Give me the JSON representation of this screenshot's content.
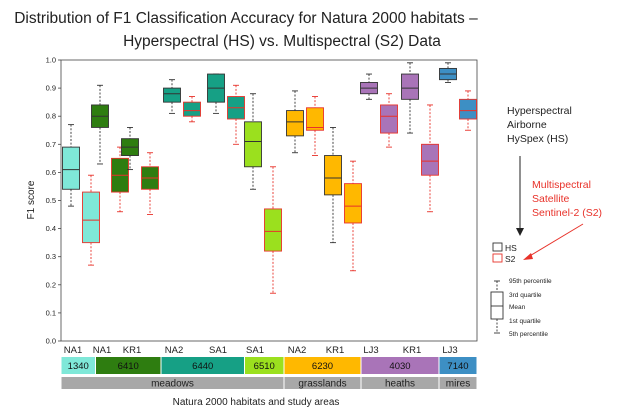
{
  "chart_data": {
    "type": "boxplot",
    "title_line1": "Distribution of F1 Classification Accuracy for Natura 2000 habitats –",
    "title_line2": "Hyperspectral (HS) vs. Multispectral (S2) Data",
    "ylabel": "F1 score",
    "xlabel": "Natura 2000  habitats and study areas",
    "ylim": [
      0,
      1
    ],
    "yticks": [
      "0.0",
      "0.1",
      "0.2",
      "0.3",
      "0.4",
      "0.5",
      "0.6",
      "0.7",
      "0.8",
      "0.9",
      "1.0"
    ],
    "groups": [
      {
        "label": "NA1",
        "habitat": "1340",
        "hs": {
          "p5": 0.48,
          "q1": 0.54,
          "mean": 0.61,
          "q3": 0.69,
          "p95": 0.77
        },
        "s2": {
          "p5": 0.27,
          "q1": 0.35,
          "mean": 0.43,
          "q3": 0.53,
          "p95": 0.59
        }
      },
      {
        "label": "NA1",
        "habitat": "6410",
        "hs": {
          "p5": 0.63,
          "q1": 0.76,
          "mean": 0.8,
          "q3": 0.84,
          "p95": 0.91
        },
        "s2": {
          "p5": 0.46,
          "q1": 0.53,
          "mean": 0.59,
          "q3": 0.65,
          "p95": 0.69
        }
      },
      {
        "label": "KR1",
        "habitat": "6410",
        "hs": {
          "p5": 0.61,
          "q1": 0.66,
          "mean": 0.69,
          "q3": 0.72,
          "p95": 0.76
        },
        "s2": {
          "p5": 0.45,
          "q1": 0.54,
          "mean": 0.58,
          "q3": 0.62,
          "p95": 0.67
        }
      },
      {
        "label": "NA2",
        "habitat": "6440",
        "hs": {
          "p5": 0.81,
          "q1": 0.85,
          "mean": 0.88,
          "q3": 0.9,
          "p95": 0.93
        },
        "s2": {
          "p5": 0.78,
          "q1": 0.8,
          "mean": 0.82,
          "q3": 0.85,
          "p95": 0.87
        }
      },
      {
        "label": "SA1",
        "habitat": "6440",
        "hs": {
          "p5": 0.81,
          "q1": 0.85,
          "mean": 0.9,
          "q3": 0.95,
          "p95": 0.95
        },
        "s2": {
          "p5": 0.7,
          "q1": 0.79,
          "mean": 0.83,
          "q3": 0.87,
          "p95": 0.91
        }
      },
      {
        "label": "SA1",
        "habitat": "6510",
        "hs": {
          "p5": 0.54,
          "q1": 0.62,
          "mean": 0.71,
          "q3": 0.78,
          "p95": 0.88
        },
        "s2": {
          "p5": 0.17,
          "q1": 0.32,
          "mean": 0.39,
          "q3": 0.47,
          "p95": 0.62
        }
      },
      {
        "label": "NA2",
        "habitat": "6230",
        "hs": {
          "p5": 0.67,
          "q1": 0.73,
          "mean": 0.78,
          "q3": 0.82,
          "p95": 0.89
        },
        "s2": {
          "p5": 0.66,
          "q1": 0.75,
          "mean": 0.76,
          "q3": 0.83,
          "p95": 0.87
        }
      },
      {
        "label": "KR1",
        "habitat": "6230",
        "hs": {
          "p5": 0.35,
          "q1": 0.52,
          "mean": 0.58,
          "q3": 0.66,
          "p95": 0.76
        },
        "s2": {
          "p5": 0.25,
          "q1": 0.42,
          "mean": 0.48,
          "q3": 0.56,
          "p95": 0.64
        }
      },
      {
        "label": "LJ3",
        "habitat": "4030",
        "hs": {
          "p5": 0.86,
          "q1": 0.88,
          "mean": 0.9,
          "q3": 0.92,
          "p95": 0.95
        },
        "s2": {
          "p5": 0.69,
          "q1": 0.74,
          "mean": 0.8,
          "q3": 0.84,
          "p95": 0.88
        }
      },
      {
        "label": "KR1",
        "habitat": "4030",
        "hs": {
          "p5": 0.74,
          "q1": 0.86,
          "mean": 0.9,
          "q3": 0.95,
          "p95": 0.99
        },
        "s2": {
          "p5": 0.46,
          "q1": 0.59,
          "mean": 0.64,
          "q3": 0.7,
          "p95": 0.84
        }
      },
      {
        "label": "LJ3",
        "habitat": "7140",
        "hs": {
          "p5": 0.92,
          "q1": 0.93,
          "mean": 0.95,
          "q3": 0.97,
          "p95": 0.99
        },
        "s2": {
          "p5": 0.75,
          "q1": 0.79,
          "mean": 0.82,
          "q3": 0.86,
          "p95": 0.89
        }
      }
    ],
    "habitat_codes": [
      {
        "code": "1340",
        "color": "#7fe8d8",
        "from": 0,
        "to": 0
      },
      {
        "code": "6410",
        "color": "#2e7d10",
        "from": 1,
        "to": 2
      },
      {
        "code": "6440",
        "color": "#16a085",
        "from": 3,
        "to": 4
      },
      {
        "code": "6510",
        "color": "#9be01e",
        "from": 5,
        "to": 5
      },
      {
        "code": "6230",
        "color": "#ffb800",
        "from": 6,
        "to": 7
      },
      {
        "code": "4030",
        "color": "#a974b8",
        "from": 8,
        "to": 9
      },
      {
        "code": "7140",
        "color": "#3d8fc4",
        "from": 10,
        "to": 10
      }
    ],
    "habitat_groups": [
      {
        "name": "meadows",
        "from": 0,
        "to": 5
      },
      {
        "name": "grasslands",
        "from": 6,
        "to": 7
      },
      {
        "name": "heaths",
        "from": 8,
        "to": 9
      },
      {
        "name": "mires",
        "from": 10,
        "to": 10
      }
    ],
    "legend": {
      "hs_label": "HS",
      "s2_label": "S2"
    },
    "annotations": {
      "hs_text": [
        "Hyperspectral",
        "Airborne",
        "HySpex (HS)"
      ],
      "s2_text": [
        "Multispectral",
        "Satellite",
        "Sentinel-2 (S2)"
      ]
    },
    "box_key": {
      "p95": "95th percentile",
      "q3": "3rd quartile",
      "mean": "Mean",
      "q1": "1st quartile",
      "p5": "5th percentile"
    },
    "colors": {
      "s2_outline": "#e8322a",
      "hs_outline": "#333333",
      "group_bar": "#a8a8a8",
      "s2_note": "#e8322a",
      "hs_note": "#222222"
    }
  }
}
